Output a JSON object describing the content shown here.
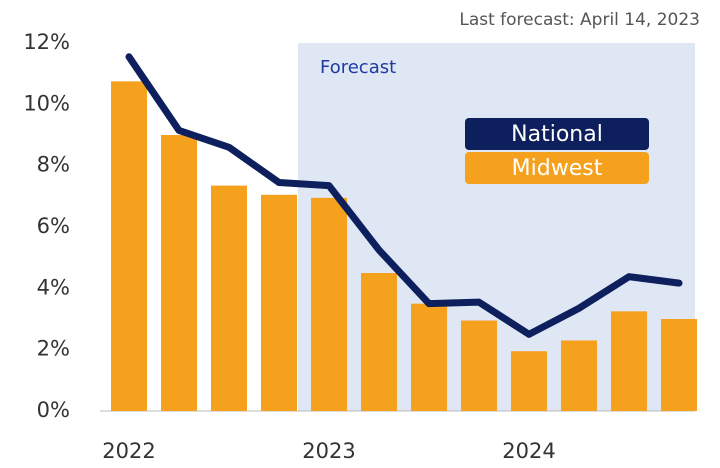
{
  "chart_data": {
    "type": "bar_line",
    "subtitle": "Last forecast: April 14, 2023",
    "annotation": "Forecast",
    "categories": [
      "2022",
      null,
      null,
      null,
      "2023",
      null,
      null,
      null,
      "2024",
      null,
      null,
      null
    ],
    "series": [
      {
        "name": "Midwest",
        "type": "bar",
        "color": "#f5a11d",
        "values": [
          10.75,
          9.0,
          7.35,
          7.05,
          6.95,
          4.5,
          3.5,
          2.95,
          1.95,
          2.3,
          3.25,
          3.0
        ]
      },
      {
        "name": "National",
        "type": "line",
        "color": "#0d1f5c",
        "values": [
          11.55,
          9.15,
          8.6,
          7.45,
          7.35,
          5.25,
          3.5,
          3.55,
          2.5,
          3.35,
          4.38,
          4.17
        ]
      }
    ],
    "ylim": [
      0,
      12
    ],
    "yticks": [
      {
        "value": 0,
        "label": "0%"
      },
      {
        "value": 2,
        "label": "2%"
      },
      {
        "value": 4,
        "label": "4%"
      },
      {
        "value": 6,
        "label": "6%"
      },
      {
        "value": 8,
        "label": "8%"
      },
      {
        "value": 10,
        "label": "10%"
      },
      {
        "value": 12,
        "label": "12%"
      }
    ]
  }
}
